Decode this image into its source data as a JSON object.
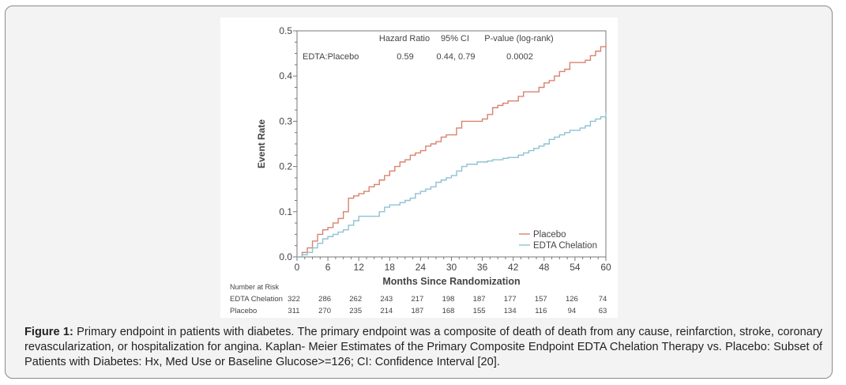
{
  "chart_data": {
    "type": "line",
    "step": true,
    "xlabel": "Months Since Randomization",
    "ylabel": "Event Rate",
    "xlim": [
      0,
      60
    ],
    "ylim": [
      0,
      0.5
    ],
    "xticks": [
      "0",
      "6",
      "12",
      "18",
      "24",
      "30",
      "36",
      "42",
      "48",
      "54",
      "60"
    ],
    "yticks": [
      "0.0",
      "0.1",
      "0.2",
      "0.3",
      "0.4",
      "0.5"
    ],
    "grid": false,
    "legend_position": "bottom-right",
    "series": [
      {
        "name": "Placebo",
        "color": "#d9826e",
        "x": [
          0,
          1,
          2,
          3,
          4,
          5,
          6,
          7,
          8,
          9,
          10,
          11,
          12,
          13,
          14,
          15,
          16,
          17,
          18,
          19,
          20,
          21,
          22,
          23,
          24,
          25,
          26,
          27,
          28,
          29,
          30,
          31,
          32,
          33,
          34,
          35,
          36,
          37,
          38,
          39,
          40,
          41,
          42,
          43,
          44,
          45,
          46,
          47,
          48,
          49,
          50,
          51,
          52,
          53,
          54,
          55,
          56,
          57,
          58,
          59,
          60
        ],
        "y": [
          0,
          0.01,
          0.02,
          0.035,
          0.05,
          0.06,
          0.065,
          0.075,
          0.085,
          0.1,
          0.13,
          0.135,
          0.14,
          0.145,
          0.155,
          0.16,
          0.17,
          0.18,
          0.19,
          0.2,
          0.21,
          0.215,
          0.225,
          0.23,
          0.235,
          0.245,
          0.25,
          0.255,
          0.265,
          0.27,
          0.27,
          0.285,
          0.3,
          0.3,
          0.3,
          0.3,
          0.305,
          0.315,
          0.33,
          0.335,
          0.34,
          0.345,
          0.345,
          0.355,
          0.365,
          0.365,
          0.365,
          0.375,
          0.385,
          0.39,
          0.4,
          0.41,
          0.415,
          0.43,
          0.43,
          0.43,
          0.435,
          0.445,
          0.455,
          0.465,
          0.47
        ]
      },
      {
        "name": "EDTA Chelation",
        "color": "#8fc1d4",
        "x": [
          0,
          1,
          2,
          3,
          4,
          5,
          6,
          7,
          8,
          9,
          10,
          11,
          12,
          13,
          14,
          15,
          16,
          17,
          18,
          19,
          20,
          21,
          22,
          23,
          24,
          25,
          26,
          27,
          28,
          29,
          30,
          31,
          32,
          33,
          34,
          35,
          36,
          37,
          38,
          39,
          40,
          41,
          42,
          43,
          44,
          45,
          46,
          47,
          48,
          49,
          50,
          51,
          52,
          53,
          54,
          55,
          56,
          57,
          58,
          59,
          60
        ],
        "y": [
          0,
          0.005,
          0.01,
          0.02,
          0.03,
          0.04,
          0.045,
          0.05,
          0.055,
          0.06,
          0.07,
          0.08,
          0.09,
          0.09,
          0.09,
          0.09,
          0.1,
          0.11,
          0.115,
          0.115,
          0.12,
          0.125,
          0.13,
          0.14,
          0.145,
          0.15,
          0.155,
          0.165,
          0.17,
          0.175,
          0.18,
          0.19,
          0.2,
          0.205,
          0.205,
          0.21,
          0.21,
          0.212,
          0.215,
          0.215,
          0.218,
          0.22,
          0.22,
          0.225,
          0.23,
          0.235,
          0.24,
          0.245,
          0.25,
          0.26,
          0.265,
          0.27,
          0.275,
          0.28,
          0.28,
          0.285,
          0.29,
          0.3,
          0.305,
          0.31,
          0.32
        ]
      }
    ],
    "annotation": {
      "headers": [
        "Hazard Ratio",
        "95% CI",
        "P-value (log-rank)"
      ],
      "row_label": "EDTA:Placebo",
      "values": [
        "0.59",
        "0.44, 0.79",
        "0.0002"
      ]
    },
    "risk_table": {
      "title": "Number at Risk",
      "rows": [
        {
          "label": "EDTA Chelation",
          "values": [
            "322",
            "286",
            "262",
            "243",
            "217",
            "198",
            "187",
            "177",
            "157",
            "126",
            "74"
          ]
        },
        {
          "label": "Placebo",
          "values": [
            "311",
            "270",
            "235",
            "214",
            "187",
            "168",
            "155",
            "134",
            "116",
            "94",
            "63"
          ]
        }
      ]
    }
  },
  "caption": {
    "label": "Figure 1:",
    "text": " Primary endpoint in patients with diabetes. The primary endpoint was a composite of death of death from any cause, reinfarction, stroke, coronary revascularization, or hospitalization for angina. Kaplan- Meier Estimates of the Primary Composite Endpoint EDTA Chelation Therapy vs. Placebo: Subset of Patients with Diabetes: Hx, Med Use or Baseline Glucose>=126; CI: Confidence Interval [20]."
  }
}
